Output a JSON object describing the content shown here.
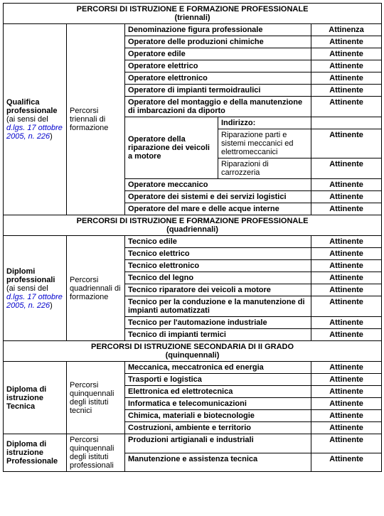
{
  "sections": {
    "s1": {
      "title_line1": "PERCORSI DI ISTRUZIONE E FORMAZIONE PROFESSIONALE",
      "title_line2": "(triennali)",
      "left1a": "Qualifica professionale",
      "left1b_before": " (ai sensi del ",
      "left1b_law": "d.lgs. 17 ottobre 2005, n. 226",
      "left1b_after": ")",
      "left2": "Percorsi triennali di formazione",
      "header_col_label": "Denominazione figura professionale",
      "header_col_value": "Attinenza",
      "rows": [
        {
          "label": "Operatore delle produzioni chimiche",
          "value": "Attinente"
        },
        {
          "label": "Operatore edile",
          "value": "Attinente"
        },
        {
          "label": "Operatore elettrico",
          "value": "Attinente"
        },
        {
          "label": "Operatore elettronico",
          "value": "Attinente"
        },
        {
          "label": "Operatore di impianti termoidraulici",
          "value": "Attinente"
        },
        {
          "label": "Operatore del montaggio e della manutenzione di imbarcazioni da diporto",
          "value": "Attinente"
        }
      ],
      "nested": {
        "left": "Operatore della riparazione dei veicoli a motore",
        "sub_header": "Indirizzo:",
        "subrows": [
          {
            "label": "Riparazione parti e sistemi meccanici ed elettromeccanici",
            "value": "Attinente"
          },
          {
            "label": "Riparazioni di carrozzeria",
            "value": "Attinente"
          }
        ]
      },
      "rows_after": [
        {
          "label": "Operatore meccanico",
          "value": "Attinente"
        },
        {
          "label": "Operatore dei sistemi e dei servizi logistici",
          "value": "Attinente"
        },
        {
          "label": "Operatore del mare e delle acque interne",
          "value": "Attinente"
        }
      ]
    },
    "s2": {
      "title_line1": "PERCORSI DI ISTRUZIONE E FORMAZIONE PROFESSIONALE",
      "title_line2": "(quadriennali)",
      "left1a": "Diplomi professionali",
      "left1b_before": " (ai sensi del ",
      "left1b_law": "d.lgs. 17 ottobre 2005, n. 226",
      "left1b_after": ")",
      "left2": "Percorsi quadriennali di formazione",
      "rows": [
        {
          "label": "Tecnico edile",
          "value": "Attinente"
        },
        {
          "label": "Tecnico elettrico",
          "value": "Attinente"
        },
        {
          "label": "Tecnico elettronico",
          "value": "Attinente"
        },
        {
          "label": "Tecnico del legno",
          "value": "Attinente"
        },
        {
          "label": "Tecnico riparatore dei veicoli a motore",
          "value": "Attinente"
        },
        {
          "label": "Tecnico per la conduzione e la manutenzione di impianti automatizzati",
          "value": "Attinente"
        },
        {
          "label": "Tecnico per l'automazione industriale",
          "value": "Attinente"
        },
        {
          "label": "Tecnico di impianti termici",
          "value": "Attinente"
        }
      ]
    },
    "s3": {
      "title_line1": "PERCORSI DI ISTRUZIONE SECONDARIA DI II GRADO",
      "title_line2": "(quinquennali)",
      "block1": {
        "left1": "Diploma di istruzione Tecnica",
        "left2": "Percorsi quinquennali degli istituti tecnici",
        "rows": [
          {
            "label": "Meccanica, meccatronica ed energia",
            "value": "Attinente"
          },
          {
            "label": "Trasporti e logistica",
            "value": "Attinente"
          },
          {
            "label": "Elettronica ed elettrotecnica",
            "value": "Attinente"
          },
          {
            "label": "Informatica e telecomunicazioni",
            "value": "Attinente"
          },
          {
            "label": "Chimica, materiali e biotecnologie",
            "value": "Attinente"
          },
          {
            "label": "Costruzioni, ambiente e territorio",
            "value": "Attinente"
          }
        ]
      },
      "block2": {
        "left1": "Diploma di istruzione Professionale",
        "left2": "Percorsi quinquennali degli istituti professionali",
        "rows": [
          {
            "label": "Produzioni artigianali e industriali",
            "value": "Attinente"
          },
          {
            "label": "Manutenzione e assistenza tecnica",
            "value": "Attinente"
          }
        ]
      }
    }
  }
}
